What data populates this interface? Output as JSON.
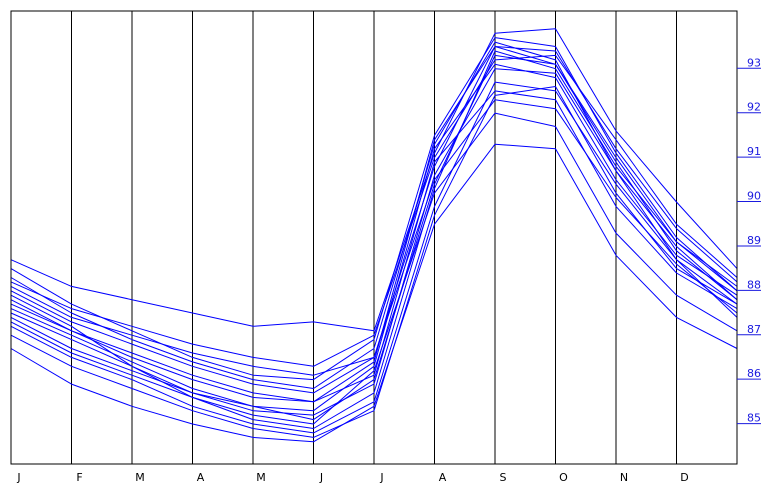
{
  "chart_data": {
    "type": "line",
    "title": "",
    "xlabel": "",
    "ylabel": "",
    "x_ticks": [
      "J",
      "F",
      "M",
      "A",
      "M",
      "J",
      "J",
      "A",
      "S",
      "O",
      "N",
      "D"
    ],
    "y_ticks": [
      85,
      86,
      87,
      88,
      89,
      90,
      91,
      92,
      93
    ],
    "ylim": [
      84.0,
      94.2
    ],
    "grid": "vertical",
    "line_color": "#0000ff",
    "tick_color": "#1a1adf",
    "series": [
      {
        "values": [
          88.6,
          88.0,
          87.7,
          87.4,
          87.1,
          87.2,
          87.0,
          91.0,
          93.7,
          93.8,
          91.5,
          89.9,
          88.4
        ]
      },
      {
        "values": [
          87.9,
          87.2,
          86.7,
          86.2,
          85.8,
          85.6,
          86.4,
          90.7,
          93.4,
          93.3,
          91.1,
          89.3,
          88.1
        ]
      },
      {
        "values": [
          87.5,
          86.9,
          86.3,
          85.7,
          85.3,
          85.0,
          85.9,
          90.3,
          93.2,
          93.0,
          90.9,
          89.0,
          87.9
        ]
      },
      {
        "values": [
          88.2,
          87.4,
          86.8,
          86.3,
          85.9,
          85.7,
          86.6,
          91.2,
          93.5,
          93.1,
          90.6,
          88.6,
          87.6
        ]
      },
      {
        "values": [
          87.1,
          86.4,
          85.9,
          85.3,
          84.9,
          84.7,
          85.4,
          89.8,
          92.6,
          92.4,
          90.3,
          88.6,
          87.3
        ]
      },
      {
        "values": [
          86.6,
          85.8,
          85.3,
          84.9,
          84.6,
          84.5,
          85.3,
          89.4,
          91.2,
          91.1,
          88.7,
          87.3,
          86.6
        ]
      },
      {
        "values": [
          87.8,
          87.1,
          86.2,
          85.5,
          85.1,
          84.9,
          86.1,
          90.1,
          91.9,
          91.6,
          89.2,
          87.8,
          87.0
        ]
      },
      {
        "values": [
          88.4,
          87.6,
          87.0,
          86.4,
          86.0,
          85.9,
          86.8,
          91.4,
          93.6,
          93.4,
          91.0,
          89.1,
          87.9
        ]
      },
      {
        "values": [
          87.4,
          86.8,
          86.2,
          85.6,
          85.2,
          85.1,
          85.8,
          90.5,
          92.9,
          92.8,
          90.6,
          88.9,
          87.7
        ]
      },
      {
        "values": [
          87.6,
          87.0,
          86.5,
          86.0,
          85.6,
          85.4,
          86.0,
          90.8,
          92.4,
          92.2,
          89.8,
          88.3,
          87.5
        ]
      },
      {
        "values": [
          87.3,
          86.6,
          86.1,
          85.6,
          85.3,
          85.2,
          86.2,
          91.1,
          93.0,
          92.7,
          90.4,
          88.7,
          87.8
        ]
      },
      {
        "values": [
          88.0,
          87.3,
          86.9,
          86.5,
          86.2,
          86.0,
          86.4,
          90.4,
          92.2,
          92.0,
          90.0,
          88.5,
          87.4
        ]
      },
      {
        "values": [
          87.2,
          86.5,
          86.0,
          85.5,
          85.0,
          84.8,
          85.6,
          90.2,
          93.3,
          92.9,
          90.7,
          89.0,
          88.0
        ]
      },
      {
        "values": [
          86.9,
          86.2,
          85.7,
          85.2,
          84.8,
          84.6,
          85.2,
          89.6,
          92.3,
          92.5,
          90.1,
          88.4,
          87.6
        ]
      },
      {
        "values": [
          88.1,
          87.5,
          87.1,
          86.7,
          86.4,
          86.2,
          86.9,
          90.9,
          93.1,
          93.2,
          91.3,
          89.4,
          88.2
        ]
      },
      {
        "values": [
          87.7,
          87.0,
          86.4,
          85.9,
          85.5,
          85.4,
          86.3,
          91.3,
          93.4,
          93.0,
          90.8,
          88.8,
          87.7
        ]
      }
    ]
  }
}
